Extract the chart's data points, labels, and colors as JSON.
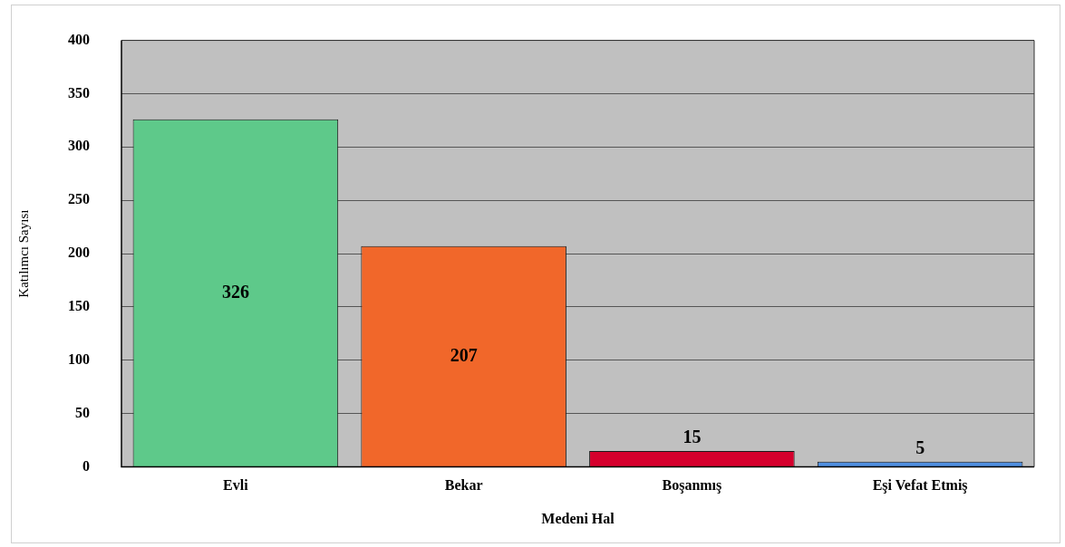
{
  "chart_data": {
    "type": "bar",
    "xlabel": "Medeni Hal",
    "ylabel": "Katılımcı Sayısı",
    "categories": [
      "Evli",
      "Bekar",
      "Boşanmış",
      "Eşi Vefat Etmiş"
    ],
    "values": [
      326,
      207,
      15,
      5
    ],
    "colors": [
      "#5ec98a",
      "#f1672a",
      "#d5002d",
      "#4f8fe0"
    ],
    "ylim": [
      0,
      400
    ],
    "yticks": [
      0,
      50,
      100,
      150,
      200,
      250,
      300,
      350,
      400
    ],
    "grid": "y",
    "data_labels": true
  }
}
